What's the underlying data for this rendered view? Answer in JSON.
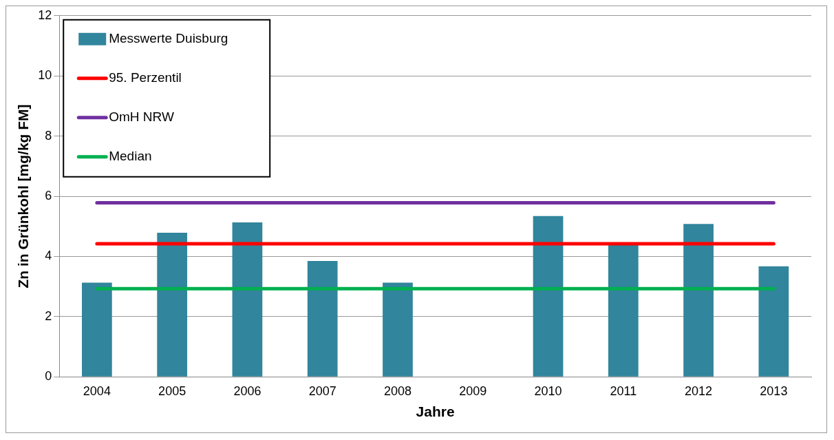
{
  "chart_data": {
    "type": "bar",
    "xlabel": "Jahre",
    "ylabel": "Zn in Grünkohl [mg/kg FM]",
    "categories": [
      "2004",
      "2005",
      "2006",
      "2007",
      "2008",
      "2009",
      "2010",
      "2011",
      "2012",
      "2013"
    ],
    "series": [
      {
        "name": "Messwerte Duisburg",
        "color": "#31859c",
        "values": [
          3.13,
          4.79,
          5.13,
          3.85,
          3.13,
          null,
          5.34,
          4.4,
          5.08,
          3.67
        ]
      },
      {
        "name": "95. Perzentil",
        "type": "line",
        "color": "#ff0000",
        "values": [
          4.42,
          4.42,
          4.42,
          4.42,
          4.42,
          4.42,
          4.42,
          4.42,
          4.42,
          4.42
        ]
      },
      {
        "name": "OmH NRW",
        "type": "line",
        "color": "#7030a0",
        "values": [
          5.78,
          5.78,
          5.78,
          5.78,
          5.78,
          5.78,
          5.78,
          5.78,
          5.78,
          5.78
        ]
      },
      {
        "name": "Median",
        "type": "line",
        "color": "#00b050",
        "values": [
          2.93,
          2.93,
          2.93,
          2.93,
          2.93,
          2.93,
          2.93,
          2.93,
          2.93,
          2.93
        ]
      }
    ],
    "ylim": [
      0,
      12
    ],
    "yticks": [
      0,
      2,
      4,
      6,
      8,
      10,
      12
    ],
    "grid": "y",
    "legend": "top left",
    "marker": "none"
  }
}
